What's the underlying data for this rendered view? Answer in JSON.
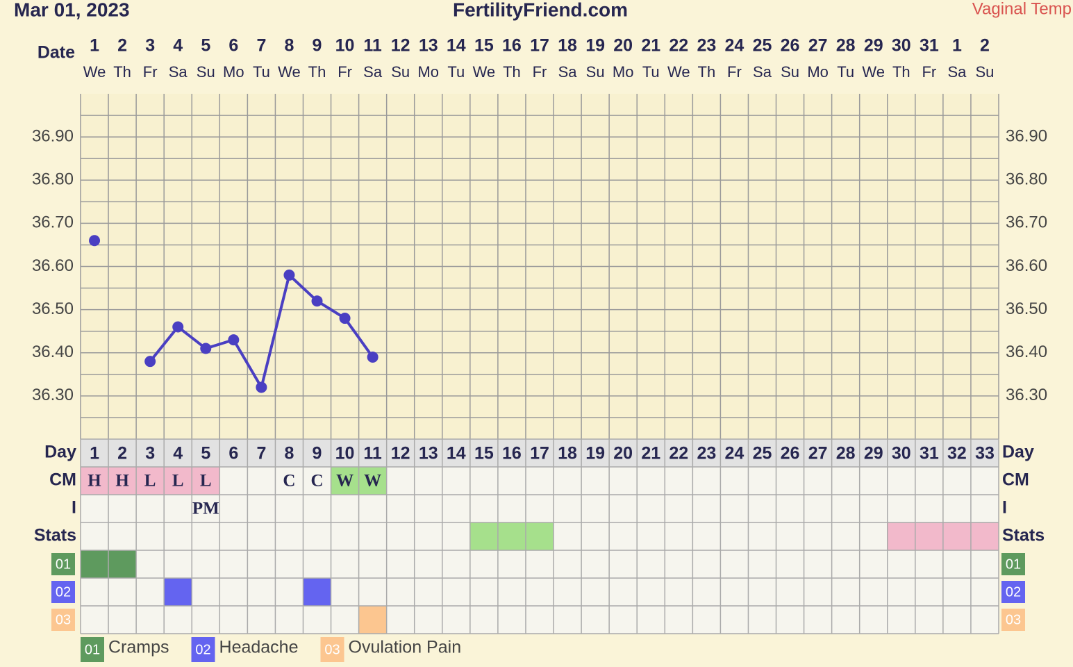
{
  "chart_data": {
    "type": "line",
    "subtitle": "Mar 01, 2023",
    "title": "FertilityFriend.com",
    "temp_label": "Vaginal Temp",
    "x_label": "Date",
    "categories": [
      "1",
      "2",
      "3",
      "4",
      "5",
      "6",
      "7",
      "8",
      "9",
      "10",
      "11",
      "12",
      "13",
      "14",
      "15",
      "16",
      "17",
      "18",
      "19",
      "20",
      "21",
      "22",
      "23",
      "24",
      "25",
      "26",
      "27",
      "28",
      "29",
      "30",
      "31",
      "1",
      "2"
    ],
    "weekdays": [
      "We",
      "Th",
      "Fr",
      "Sa",
      "Su",
      "Mo",
      "Tu",
      "We",
      "Th",
      "Fr",
      "Sa",
      "Su",
      "Mo",
      "Tu",
      "We",
      "Th",
      "Fr",
      "Sa",
      "Su",
      "Mo",
      "Tu",
      "We",
      "Th",
      "Fr",
      "Sa",
      "Su",
      "Mo",
      "Tu",
      "We",
      "Th",
      "Fr",
      "Sa",
      "Su"
    ],
    "series": [
      {
        "color": "#4a3fc2",
        "values": [
          36.66,
          null,
          36.38,
          36.46,
          36.41,
          36.43,
          36.32,
          36.58,
          36.52,
          36.48,
          36.39,
          null,
          null,
          null,
          null,
          null,
          null,
          null,
          null,
          null,
          null,
          null,
          null,
          null,
          null,
          null,
          null,
          null,
          null,
          null,
          null,
          null,
          null
        ]
      }
    ],
    "ylim": [
      36.2,
      37.0
    ],
    "yticks": [
      {
        "value": 36.3,
        "label": "36.30"
      },
      {
        "value": 36.4,
        "label": "36.40"
      },
      {
        "value": 36.5,
        "label": "36.50"
      },
      {
        "value": 36.6,
        "label": "36.60"
      },
      {
        "value": 36.7,
        "label": "36.70"
      },
      {
        "value": 36.8,
        "label": "36.80"
      },
      {
        "value": 36.9,
        "label": "36.90"
      }
    ],
    "minor_yticks": [
      36.25,
      36.35,
      36.45,
      36.55,
      36.65,
      36.75,
      36.85,
      36.95
    ],
    "grid": true,
    "day_row": {
      "label": "Day",
      "values": [
        1,
        2,
        3,
        4,
        5,
        6,
        7,
        8,
        9,
        10,
        11,
        12,
        13,
        14,
        15,
        16,
        17,
        18,
        19,
        20,
        21,
        22,
        23,
        24,
        25,
        26,
        27,
        28,
        29,
        30,
        31,
        32,
        33
      ]
    },
    "cm_row": {
      "label": "CM",
      "values": [
        "H",
        "H",
        "L",
        "L",
        "L",
        null,
        null,
        "C",
        "C",
        "W",
        "W",
        null,
        null,
        null,
        null,
        null,
        null,
        null,
        null,
        null,
        null,
        null,
        null,
        null,
        null,
        null,
        null,
        null,
        null,
        null,
        null,
        null,
        null
      ],
      "colors": [
        "#f2b9cb",
        "#f2b9cb",
        "#f2b9cb",
        "#f2b9cb",
        "#f2b9cb",
        null,
        null,
        null,
        null,
        "#a6e08c",
        "#a6e08c",
        null,
        null,
        null,
        null,
        null,
        null,
        null,
        null,
        null,
        null,
        null,
        null,
        null,
        null,
        null,
        null,
        null,
        null,
        null,
        null,
        null,
        null
      ]
    },
    "i_row": {
      "label": "I",
      "values": [
        null,
        null,
        null,
        null,
        "PM",
        null,
        null,
        null,
        null,
        null,
        null,
        null,
        null,
        null,
        null,
        null,
        null,
        null,
        null,
        null,
        null,
        null,
        null,
        null,
        null,
        null,
        null,
        null,
        null,
        null,
        null,
        null,
        null
      ]
    },
    "stats_row": {
      "label": "Stats",
      "colors": [
        null,
        null,
        null,
        null,
        null,
        null,
        null,
        null,
        null,
        null,
        null,
        null,
        null,
        null,
        "#a6e08c",
        "#a6e08c",
        "#a6e08c",
        null,
        null,
        null,
        null,
        null,
        null,
        null,
        null,
        null,
        null,
        null,
        null,
        "#f2b9cb",
        "#f2b9cb",
        "#f2b9cb",
        "#f2b9cb"
      ]
    },
    "symptoms": [
      {
        "code": "01",
        "name": "Cramps",
        "color": "#5e9a5e",
        "days": [
          1,
          2
        ]
      },
      {
        "code": "02",
        "name": "Headache",
        "color": "#6464f0",
        "days": [
          4,
          9
        ]
      },
      {
        "code": "03",
        "name": "Ovulation Pain",
        "color": "#fcc690",
        "days": [
          11
        ]
      }
    ]
  }
}
